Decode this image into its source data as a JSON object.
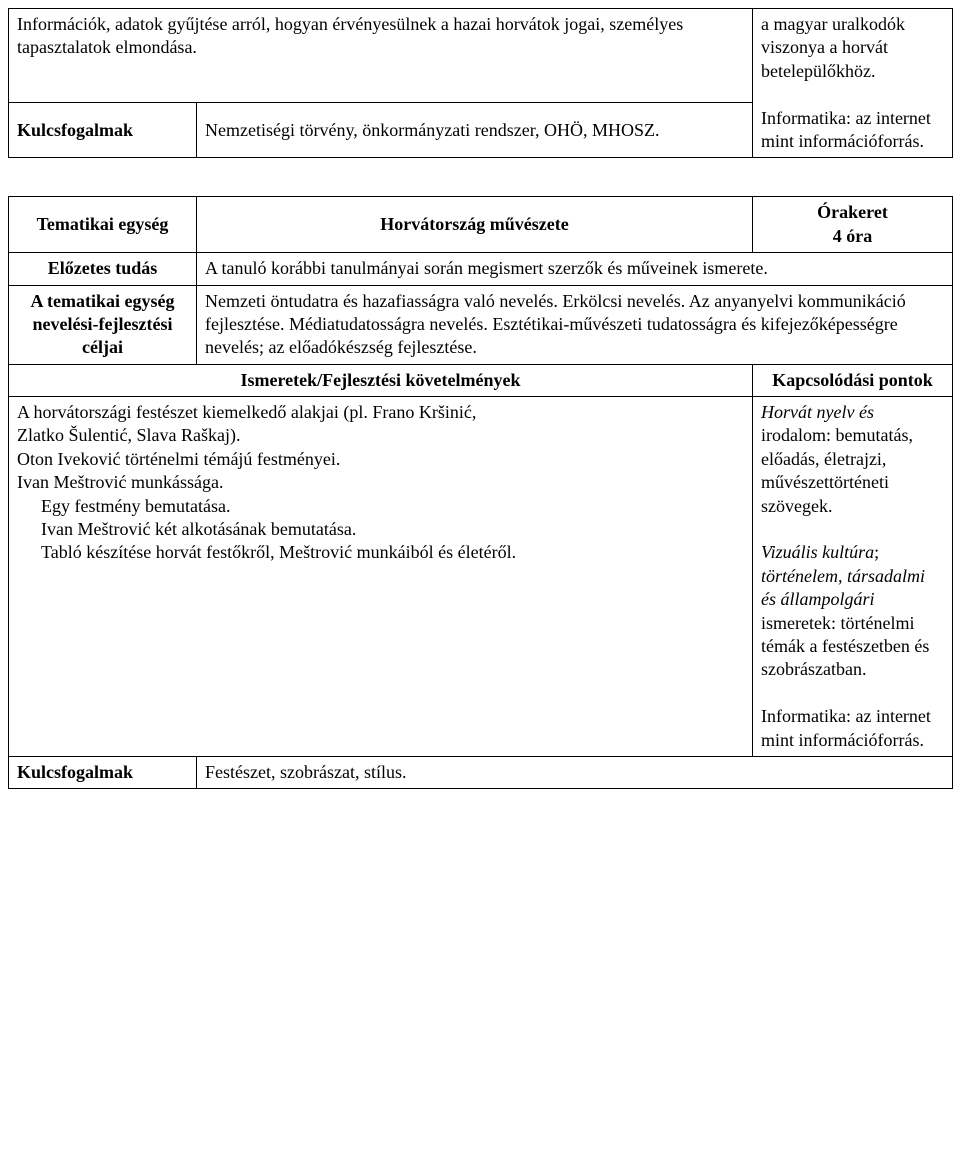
{
  "table1": {
    "r1c1": "Információk, adatok gyűjtése arról, hogyan érvényesülnek a hazai horvátok jogai, személyes tapasztalatok elmondása.",
    "r1c2": "a magyar uralkodók viszonya a horvát betelepülőkhöz.",
    "r2c2": "Informatika: az internet mint információforrás.",
    "r3c1": "Kulcsfogalmak",
    "r3c2": "Nemzetiségi törvény, önkormányzati rendszer, OHÖ, MHOSZ."
  },
  "table2": {
    "r1c1": "Tematikai egység",
    "r1c2": "Horvátország művészete",
    "r1c3a": "Órakeret",
    "r1c3b": "4 óra",
    "r2c1": "Előzetes tudás",
    "r2c2": "A tanuló korábbi tanulmányai során megismert szerzők és műveinek ismerete.",
    "r3c1": "A tematikai egység nevelési-fejlesztési céljai",
    "r3c2": "Nemzeti öntudatra és hazafiasságra való nevelés. Erkölcsi nevelés. Az anyanyelvi kommunikáció fejlesztése. Médiatudatosságra nevelés. Esztétikai-művészeti tudatosságra és kifejezőképességre nevelés; az előadókészség fejlesztése.",
    "r4c1": "Ismeretek/Fejlesztési követelmények",
    "r4c2": "Kapcsolódási pontok",
    "r5_lines": {
      "l1": "A horvátországi festészet kiemelkedő alakjai (pl. Frano Kršinić,",
      "l2": "Zlatko Šulentić, Slava Raškaj).",
      "l3": "Oton Iveković történelmi témájú festményei.",
      "l4": "Ivan Meštrović munkássága.",
      "l5": "Egy festmény bemutatása.",
      "l6": "Ivan Meštrović két alkotásának bemutatása.",
      "l7": "Tabló készítése horvát festőkről, Meštrović munkáiból és életéről."
    },
    "r5c2_p1a": "Horvát nyelv és",
    "r5c2_p1b": "irodalom: bemutatás, előadás, életrajzi, művészettörténeti szövegek.",
    "r5c2_p2a": "Vizuális kultúra",
    "r5c2_p2b": "; ",
    "r5c2_p2c": "történelem, társadalmi és állampolgári",
    "r5c2_p2d": " ismeretek: történelmi témák a festészetben és szobrászatban.",
    "r5c2_p3": "Informatika: az internet mint információforrás.",
    "r6c1": "Kulcsfogalmak",
    "r6c2": "Festészet, szobrászat, stílus."
  }
}
